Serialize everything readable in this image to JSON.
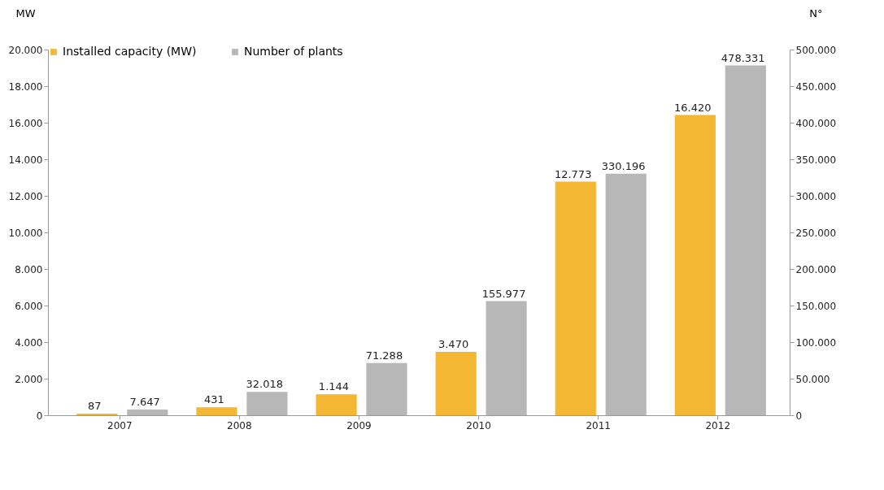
{
  "chart_data": {
    "type": "bar",
    "categories": [
      "2007",
      "2008",
      "2009",
      "2010",
      "2011",
      "2012"
    ],
    "ylabel": "MW",
    "y2label": "N°",
    "legend": "top",
    "ylim": [
      0,
      20000
    ],
    "yticks": [
      0,
      {
        "value": 2000,
        "label": "2.000"
      },
      {
        "value": 4000,
        "label": "4.000"
      },
      {
        "value": 6000,
        "label": "6.000"
      },
      {
        "value": 8000,
        "label": "8.000"
      },
      {
        "value": 10000,
        "label": "10.000"
      },
      {
        "value": 12000,
        "label": "12.000"
      },
      {
        "value": 14000,
        "label": "14.000"
      },
      {
        "value": 16000,
        "label": "16.000"
      },
      {
        "value": 18000,
        "label": "18.000"
      },
      {
        "value": 20000,
        "label": "20.000"
      }
    ],
    "y2lim": [
      0,
      500000
    ],
    "y2ticks": [
      0,
      {
        "value": 50000,
        "label": "50.000"
      },
      {
        "value": 100000,
        "label": "100.000"
      },
      {
        "value": 150000,
        "label": "150.000"
      },
      {
        "value": 200000,
        "label": "200.000"
      },
      {
        "value": 250000,
        "label": "250.000"
      },
      {
        "value": 300000,
        "label": "300.000"
      },
      {
        "value": 350000,
        "label": "350.000"
      },
      {
        "value": 400000,
        "label": "400.000"
      },
      {
        "value": 450000,
        "label": "450.000"
      },
      {
        "value": 500000,
        "label": "500.000"
      }
    ],
    "series": [
      {
        "name": "Installed capacity (MW)",
        "color": "#f3b733",
        "values": [
          87,
          431,
          1144,
          3470,
          12773,
          16420
        ],
        "value_labels": [
          "87",
          "431",
          "1.144",
          "3.470",
          "12.773",
          "16.420"
        ]
      },
      {
        "name": "Number of plants",
        "color": "#b7b7b7",
        "axis": "y2",
        "values": [
          7647,
          32018,
          71288,
          155977,
          330196,
          478331
        ],
        "value_labels": [
          "7.647",
          "32.018",
          "71.288",
          "155.977",
          "330.196",
          "478.331"
        ]
      }
    ]
  }
}
